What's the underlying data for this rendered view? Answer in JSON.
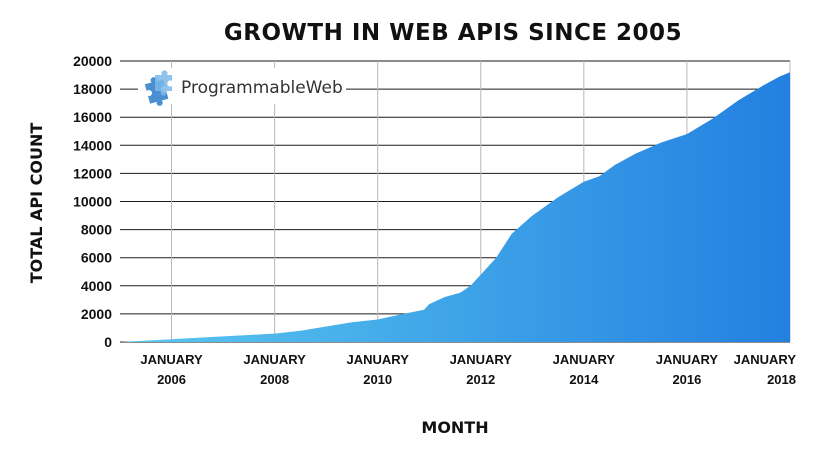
{
  "chart_data": {
    "type": "area",
    "title": "GROWTH IN WEB APIS SINCE 2005",
    "xlabel": "MONTH",
    "ylabel": "TOTAL API COUNT",
    "ylim": [
      0,
      20000
    ],
    "xlim": [
      2005.0,
      2018.0
    ],
    "yticks": [
      0,
      2000,
      4000,
      6000,
      8000,
      10000,
      12000,
      14000,
      16000,
      18000,
      20000
    ],
    "xticks": [
      {
        "value": 2006,
        "line1": "JANUARY",
        "line2": "2006"
      },
      {
        "value": 2008,
        "line1": "JANUARY",
        "line2": "2008"
      },
      {
        "value": 2010,
        "line1": "JANUARY",
        "line2": "2010"
      },
      {
        "value": 2012,
        "line1": "JANUARY",
        "line2": "2012"
      },
      {
        "value": 2014,
        "line1": "JANUARY",
        "line2": "2014"
      },
      {
        "value": 2016,
        "line1": "JANUARY",
        "line2": "2016"
      },
      {
        "value": 2018,
        "line1": "JANUARY",
        "line2": "2018"
      }
    ],
    "series": [
      {
        "name": "Total API count",
        "x": [
          2005.0,
          2005.5,
          2006.0,
          2006.5,
          2007.0,
          2007.5,
          2008.0,
          2008.5,
          2009.0,
          2009.5,
          2010.0,
          2010.5,
          2010.9,
          2011.0,
          2011.3,
          2011.6,
          2011.8,
          2012.0,
          2012.3,
          2012.6,
          2013.0,
          2013.5,
          2014.0,
          2014.3,
          2014.6,
          2015.0,
          2015.5,
          2016.0,
          2016.5,
          2017.0,
          2017.5,
          2017.8,
          2018.0
        ],
        "values": [
          0,
          100,
          200,
          300,
          400,
          500,
          600,
          800,
          1100,
          1400,
          1600,
          2000,
          2300,
          2700,
          3200,
          3500,
          4000,
          4800,
          6000,
          7700,
          9000,
          10300,
          11400,
          11800,
          12600,
          13400,
          14200,
          14800,
          15900,
          17200,
          18300,
          18900,
          19200
        ]
      }
    ],
    "colors": {
      "area_start": "#5ac8f0",
      "area_end": "#2380e0"
    }
  },
  "logo": {
    "text": "ProgrammableWeb",
    "icon": "puzzle-piece-icon",
    "color": "#3d88c8"
  }
}
